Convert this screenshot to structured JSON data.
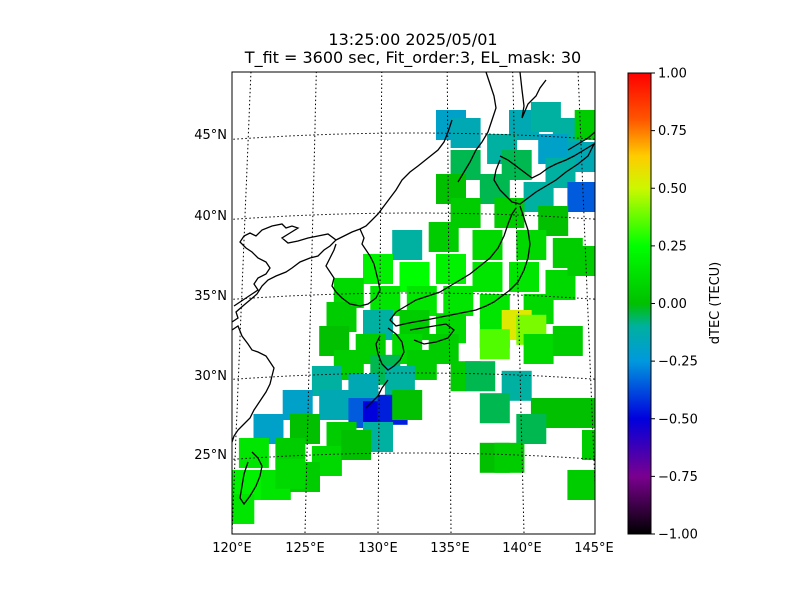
{
  "chart_data": {
    "type": "heatmap",
    "title": "13:25:00 2025/05/01",
    "subtitle": "T_fit = 3600 sec, Fit_order:3, EL_mask: 30",
    "x_ticks": [
      "120°E",
      "125°E",
      "130°E",
      "135°E",
      "140°E",
      "145°E"
    ],
    "y_ticks": [
      "25°N",
      "30°N",
      "35°N",
      "40°N",
      "45°N"
    ],
    "lon_range": [
      120,
      145
    ],
    "lat_range": [
      20,
      49
    ],
    "grid": true,
    "colorbar": {
      "label": "dTEC (TECU)",
      "range": [
        -1.0,
        1.0
      ],
      "ticks": [
        "1.00",
        "0.75",
        "0.50",
        "0.25",
        "0.00",
        "−0.25",
        "−0.50",
        "−0.75",
        "−1.00"
      ],
      "colormap": "nipy_spectral"
    },
    "cells": [
      {
        "lon": 135.0,
        "lat": 45.5,
        "value": -0.2
      },
      {
        "lon": 136.0,
        "lat": 45.0,
        "value": -0.15
      },
      {
        "lon": 140.0,
        "lat": 45.5,
        "value": -0.15
      },
      {
        "lon": 141.5,
        "lat": 46.0,
        "value": -0.1
      },
      {
        "lon": 143.0,
        "lat": 45.0,
        "value": -0.1
      },
      {
        "lon": 144.5,
        "lat": 45.5,
        "value": 0.05
      },
      {
        "lon": 138.5,
        "lat": 44.0,
        "value": -0.1
      },
      {
        "lon": 142.0,
        "lat": 44.0,
        "value": -0.2
      },
      {
        "lon": 144.0,
        "lat": 43.5,
        "value": -0.15
      },
      {
        "lon": 136.0,
        "lat": 43.0,
        "value": -0.05
      },
      {
        "lon": 139.5,
        "lat": 43.0,
        "value": -0.05
      },
      {
        "lon": 142.5,
        "lat": 42.5,
        "value": -0.1
      },
      {
        "lon": 135.0,
        "lat": 41.5,
        "value": 0.0
      },
      {
        "lon": 138.0,
        "lat": 41.5,
        "value": -0.05
      },
      {
        "lon": 141.0,
        "lat": 41.0,
        "value": -0.1
      },
      {
        "lon": 144.0,
        "lat": 41.0,
        "value": -0.35
      },
      {
        "lon": 136.0,
        "lat": 40.0,
        "value": 0.05
      },
      {
        "lon": 139.0,
        "lat": 40.0,
        "value": 0.05
      },
      {
        "lon": 142.0,
        "lat": 39.5,
        "value": 0.0
      },
      {
        "lon": 132.0,
        "lat": 38.0,
        "value": -0.1
      },
      {
        "lon": 134.5,
        "lat": 38.5,
        "value": 0.05
      },
      {
        "lon": 137.5,
        "lat": 38.0,
        "value": 0.1
      },
      {
        "lon": 140.5,
        "lat": 38.0,
        "value": 0.1
      },
      {
        "lon": 143.0,
        "lat": 37.5,
        "value": 0.05
      },
      {
        "lon": 130.0,
        "lat": 36.5,
        "value": 0.2
      },
      {
        "lon": 132.5,
        "lat": 36.0,
        "value": 0.25
      },
      {
        "lon": 135.0,
        "lat": 36.5,
        "value": 0.2
      },
      {
        "lon": 137.5,
        "lat": 36.0,
        "value": 0.15
      },
      {
        "lon": 140.0,
        "lat": 36.0,
        "value": 0.15
      },
      {
        "lon": 142.5,
        "lat": 35.5,
        "value": 0.1
      },
      {
        "lon": 144.0,
        "lat": 37.0,
        "value": 0.05
      },
      {
        "lon": 128.0,
        "lat": 35.0,
        "value": 0.1
      },
      {
        "lon": 130.5,
        "lat": 34.5,
        "value": 0.15
      },
      {
        "lon": 133.0,
        "lat": 34.5,
        "value": 0.15
      },
      {
        "lon": 135.5,
        "lat": 34.5,
        "value": 0.15
      },
      {
        "lon": 138.0,
        "lat": 34.0,
        "value": 0.15
      },
      {
        "lon": 141.0,
        "lat": 34.0,
        "value": 0.1
      },
      {
        "lon": 127.5,
        "lat": 33.5,
        "value": 0.05
      },
      {
        "lon": 130.0,
        "lat": 33.0,
        "value": -0.1
      },
      {
        "lon": 132.5,
        "lat": 33.0,
        "value": 0.05
      },
      {
        "lon": 135.0,
        "lat": 32.8,
        "value": 0.1
      },
      {
        "lon": 138.0,
        "lat": 32.5,
        "value": 0.15
      },
      {
        "lon": 139.5,
        "lat": 33.0,
        "value": 0.55
      },
      {
        "lon": 140.5,
        "lat": 32.7,
        "value": 0.4
      },
      {
        "lon": 138.0,
        "lat": 31.8,
        "value": 0.35
      },
      {
        "lon": 141.0,
        "lat": 31.5,
        "value": 0.1
      },
      {
        "lon": 143.0,
        "lat": 32.0,
        "value": 0.05
      },
      {
        "lon": 127.0,
        "lat": 32.0,
        "value": 0.0
      },
      {
        "lon": 129.5,
        "lat": 31.5,
        "value": 0.05
      },
      {
        "lon": 132.0,
        "lat": 31.5,
        "value": 0.1
      },
      {
        "lon": 134.5,
        "lat": 31.5,
        "value": 0.05
      },
      {
        "lon": 128.0,
        "lat": 30.5,
        "value": 0.05
      },
      {
        "lon": 130.5,
        "lat": 30.2,
        "value": -0.05
      },
      {
        "lon": 133.0,
        "lat": 30.5,
        "value": 0.05
      },
      {
        "lon": 126.5,
        "lat": 29.5,
        "value": -0.1
      },
      {
        "lon": 129.0,
        "lat": 29.0,
        "value": -0.15
      },
      {
        "lon": 131.5,
        "lat": 29.5,
        "value": -0.1
      },
      {
        "lon": 136.0,
        "lat": 29.8,
        "value": 0.05
      },
      {
        "lon": 137.0,
        "lat": 29.8,
        "value": -0.05
      },
      {
        "lon": 124.5,
        "lat": 28.0,
        "value": -0.2
      },
      {
        "lon": 127.0,
        "lat": 28.0,
        "value": -0.15
      },
      {
        "lon": 129.0,
        "lat": 27.5,
        "value": -0.35
      },
      {
        "lon": 130.0,
        "lat": 27.3,
        "value": -0.5
      },
      {
        "lon": 131.0,
        "lat": 27.7,
        "value": -0.45
      },
      {
        "lon": 132.0,
        "lat": 28.0,
        "value": 0.0
      },
      {
        "lon": 139.5,
        "lat": 29.2,
        "value": -0.1
      },
      {
        "lon": 141.5,
        "lat": 27.5,
        "value": 0.0
      },
      {
        "lon": 143.0,
        "lat": 27.5,
        "value": 0.0
      },
      {
        "lon": 138.0,
        "lat": 27.8,
        "value": -0.05
      },
      {
        "lon": 122.5,
        "lat": 26.5,
        "value": -0.2
      },
      {
        "lon": 125.0,
        "lat": 26.5,
        "value": 0.0
      },
      {
        "lon": 127.5,
        "lat": 26.0,
        "value": 0.05
      },
      {
        "lon": 130.0,
        "lat": 26.0,
        "value": -0.1
      },
      {
        "lon": 140.5,
        "lat": 26.5,
        "value": -0.05
      },
      {
        "lon": 145.0,
        "lat": 27.5,
        "value": 0.0
      },
      {
        "lon": 121.5,
        "lat": 25.0,
        "value": 0.15
      },
      {
        "lon": 124.0,
        "lat": 25.0,
        "value": 0.05
      },
      {
        "lon": 126.5,
        "lat": 24.5,
        "value": 0.1
      },
      {
        "lon": 128.5,
        "lat": 25.5,
        "value": 0.0
      },
      {
        "lon": 145.0,
        "lat": 25.5,
        "value": 0.05
      },
      {
        "lon": 138.0,
        "lat": 24.7,
        "value": 0.0
      },
      {
        "lon": 139.0,
        "lat": 24.7,
        "value": 0.05
      },
      {
        "lon": 121.0,
        "lat": 23.0,
        "value": 0.2
      },
      {
        "lon": 123.0,
        "lat": 23.0,
        "value": 0.15
      },
      {
        "lon": 125.0,
        "lat": 23.5,
        "value": 0.05
      },
      {
        "lon": 124.0,
        "lat": 23.7,
        "value": 0.1
      },
      {
        "lon": 120.5,
        "lat": 21.5,
        "value": 0.15
      },
      {
        "lon": 144.0,
        "lat": 23.0,
        "value": 0.05
      }
    ]
  }
}
